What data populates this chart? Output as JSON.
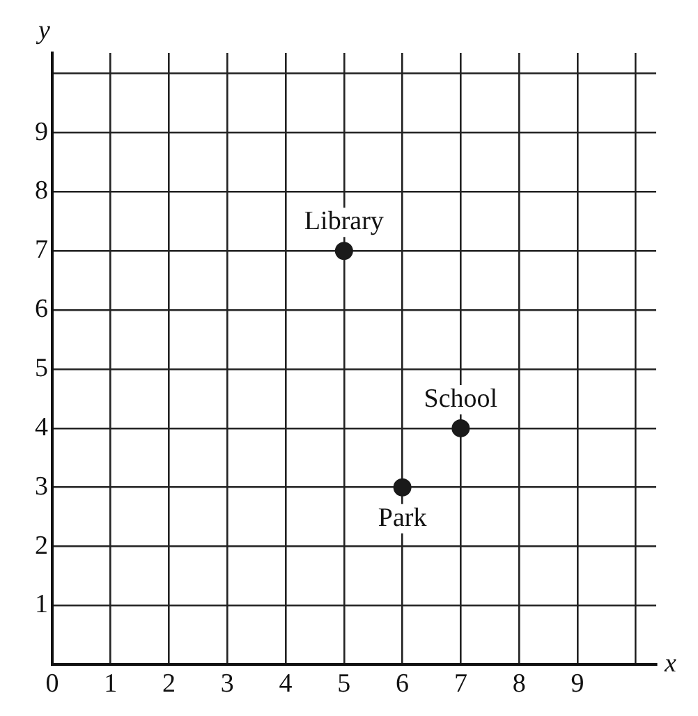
{
  "chart_data": {
    "type": "scatter",
    "xlabel": "x",
    "ylabel": "y",
    "x": [
      5,
      6,
      7
    ],
    "values": [
      7,
      3,
      4
    ],
    "color": "#1a1a1a",
    "marker": "circle",
    "grid": true,
    "xlim": [
      0,
      10.35
    ],
    "ylim": [
      0,
      10.35
    ],
    "xticks": [
      0,
      1,
      2,
      3,
      4,
      5,
      6,
      7,
      8,
      9,
      {
        "value": 10,
        "label": null
      }
    ],
    "yticks": [
      {
        "value": 0,
        "label": null
      },
      1,
      2,
      3,
      4,
      5,
      6,
      7,
      8,
      9,
      {
        "value": 10,
        "label": null
      }
    ],
    "annotations": [
      {
        "text": "Library",
        "x": 5,
        "y": 7
      },
      {
        "text": "Park",
        "x": 6,
        "y": 3
      },
      {
        "text": "School",
        "x": 7,
        "y": 4
      }
    ]
  }
}
